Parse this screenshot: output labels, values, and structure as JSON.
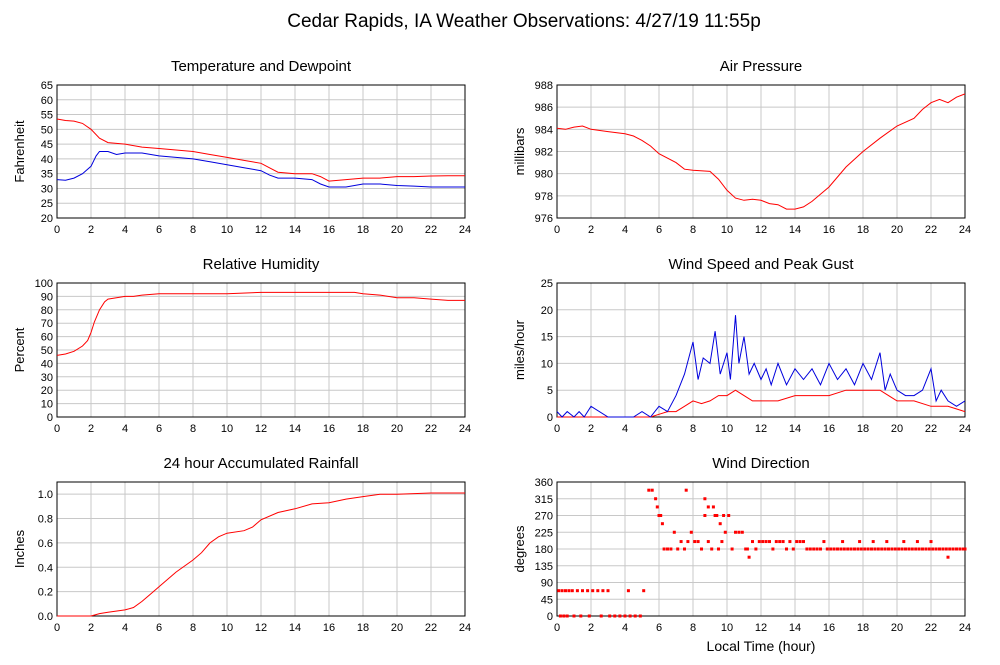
{
  "page": {
    "title": "Cedar Rapids, IA Weather Observations: 4/27/19 11:55p",
    "xlabel": "Local Time (hour)"
  },
  "colors": {
    "red": "#ff0000",
    "blue": "#0000dd"
  },
  "chart_data": [
    {
      "id": "temp",
      "type": "line",
      "title": "Temperature and Dewpoint",
      "ylabel": "Fahrenheit",
      "xlim": [
        0,
        24
      ],
      "xticks": [
        0,
        2,
        4,
        6,
        8,
        10,
        12,
        14,
        16,
        18,
        20,
        22,
        24
      ],
      "ylim": [
        20,
        65
      ],
      "yticks": [
        20,
        25,
        30,
        35,
        40,
        45,
        50,
        55,
        60,
        65
      ],
      "grid": true,
      "series": [
        {
          "color": "red",
          "x": [
            0,
            0.5,
            1,
            1.5,
            2,
            2.5,
            3,
            4,
            5,
            6,
            7,
            8,
            9,
            10,
            11,
            12,
            12.5,
            13,
            14,
            15,
            15.5,
            16,
            17,
            18,
            19,
            20,
            21,
            22,
            23,
            24
          ],
          "y": [
            53.5,
            53,
            52.8,
            52,
            50,
            47,
            45.5,
            45,
            44,
            43.5,
            43,
            42.5,
            41.5,
            40.5,
            39.5,
            38.5,
            37,
            35.5,
            35,
            35,
            34,
            32.5,
            33,
            33.5,
            33.5,
            34,
            34,
            34.2,
            34.3,
            34.3
          ]
        },
        {
          "color": "blue",
          "x": [
            0,
            0.5,
            1,
            1.5,
            2,
            2.3,
            2.5,
            3,
            3.5,
            4,
            5,
            6,
            7,
            8,
            9,
            10,
            11,
            12,
            12.5,
            13,
            14,
            15,
            15.5,
            16,
            17,
            18,
            19,
            20,
            21,
            22,
            23,
            24
          ],
          "y": [
            33,
            32.8,
            33.5,
            35,
            37.5,
            41,
            42.5,
            42.5,
            41.5,
            42,
            42,
            41,
            40.5,
            40,
            39,
            38,
            37,
            36,
            34.5,
            33.5,
            33.5,
            33,
            31.5,
            30.5,
            30.5,
            31.5,
            31.5,
            31,
            30.8,
            30.5,
            30.5,
            30.5
          ]
        }
      ]
    },
    {
      "id": "pressure",
      "type": "line",
      "title": "Air Pressure",
      "ylabel": "millibars",
      "xlim": [
        0,
        24
      ],
      "xticks": [
        0,
        2,
        4,
        6,
        8,
        10,
        12,
        14,
        16,
        18,
        20,
        22,
        24
      ],
      "ylim": [
        976,
        988
      ],
      "yticks": [
        976,
        978,
        980,
        982,
        984,
        986,
        988
      ],
      "grid": true,
      "series": [
        {
          "color": "red",
          "x": [
            0,
            0.5,
            1,
            1.5,
            2,
            3,
            4,
            4.5,
            5,
            5.5,
            6,
            7,
            7.5,
            8,
            9,
            9.5,
            10,
            10.5,
            11,
            11.5,
            12,
            12.5,
            13,
            13.5,
            14,
            14.5,
            15,
            16,
            17,
            18,
            19,
            20,
            21,
            21.5,
            22,
            22.5,
            23,
            23.5,
            24
          ],
          "y": [
            984.1,
            984,
            984.2,
            984.3,
            984,
            983.8,
            983.6,
            983.4,
            983,
            982.5,
            981.8,
            981,
            980.4,
            980.3,
            980.2,
            979.5,
            978.5,
            977.8,
            977.6,
            977.7,
            977.6,
            977.3,
            977.2,
            976.8,
            976.8,
            977,
            977.5,
            978.8,
            980.6,
            982,
            983.2,
            984.3,
            985,
            985.8,
            986.4,
            986.7,
            986.4,
            986.9,
            987.2
          ]
        }
      ]
    },
    {
      "id": "rh",
      "type": "line",
      "title": "Relative Humidity",
      "ylabel": "Percent",
      "xlim": [
        0,
        24
      ],
      "xticks": [
        0,
        2,
        4,
        6,
        8,
        10,
        12,
        14,
        16,
        18,
        20,
        22,
        24
      ],
      "ylim": [
        0,
        100
      ],
      "yticks": [
        0,
        10,
        20,
        30,
        40,
        50,
        60,
        70,
        80,
        90,
        100
      ],
      "grid": true,
      "series": [
        {
          "color": "red",
          "x": [
            0,
            0.5,
            1,
            1.5,
            1.8,
            2,
            2.2,
            2.5,
            2.8,
            3,
            3.5,
            4,
            4.5,
            5,
            6,
            8,
            10,
            12,
            14,
            16,
            17,
            17.5,
            18,
            19,
            20,
            21,
            22,
            23,
            24
          ],
          "y": [
            46,
            47,
            49,
            53,
            57,
            63,
            71,
            80,
            86,
            88,
            89,
            90,
            90,
            91,
            92,
            92,
            92,
            93,
            93,
            93,
            93,
            93,
            92,
            91,
            89,
            89,
            88,
            87,
            87
          ]
        }
      ]
    },
    {
      "id": "wind",
      "type": "line",
      "title": "Wind Speed and Peak Gust",
      "ylabel": "miles/hour",
      "xlim": [
        0,
        24
      ],
      "xticks": [
        0,
        2,
        4,
        6,
        8,
        10,
        12,
        14,
        16,
        18,
        20,
        22,
        24
      ],
      "ylim": [
        0,
        25
      ],
      "yticks": [
        0,
        5,
        10,
        15,
        20,
        25
      ],
      "grid": true,
      "series": [
        {
          "color": "red",
          "x": [
            0,
            5.5,
            6,
            6.5,
            7,
            7.5,
            8,
            8.5,
            9,
            9.5,
            10,
            10.5,
            11,
            11.5,
            12,
            13,
            14,
            15,
            16,
            17,
            18,
            19,
            20,
            21,
            22,
            23,
            24
          ],
          "y": [
            0,
            0,
            0.5,
            1,
            1,
            2,
            3,
            2.5,
            3,
            4,
            4,
            5,
            4,
            3,
            3,
            3,
            4,
            4,
            4,
            5,
            5,
            5,
            3,
            3,
            2,
            2,
            1
          ]
        },
        {
          "color": "blue",
          "x": [
            0,
            0.3,
            0.6,
            1,
            1.3,
            1.6,
            2,
            3,
            4,
            4.5,
            5,
            5.5,
            6,
            6.5,
            7,
            7.5,
            8,
            8.3,
            8.6,
            9,
            9.3,
            9.6,
            10,
            10.2,
            10.5,
            10.7,
            11,
            11.3,
            11.6,
            12,
            12.3,
            12.6,
            13,
            13.5,
            14,
            14.5,
            15,
            15.5,
            16,
            16.5,
            17,
            17.5,
            18,
            18.5,
            19,
            19.3,
            19.6,
            20,
            20.5,
            21,
            21.5,
            22,
            22.3,
            22.6,
            23,
            23.5,
            24
          ],
          "y": [
            1,
            0,
            1,
            0,
            1,
            0,
            2,
            0,
            0,
            0,
            1,
            0,
            2,
            1,
            4,
            8,
            14,
            7,
            11,
            10,
            16,
            8,
            12,
            7,
            19,
            10,
            15,
            8,
            10,
            7,
            9,
            6,
            10,
            6,
            9,
            7,
            9,
            6,
            10,
            7,
            9,
            6,
            10,
            7,
            12,
            5,
            8,
            5,
            4,
            4,
            5,
            9,
            3,
            5,
            3,
            2,
            3
          ]
        }
      ]
    },
    {
      "id": "rain",
      "type": "line",
      "title": "24 hour Accumulated Rainfall",
      "ylabel": "Inches",
      "xlim": [
        0,
        24
      ],
      "xticks": [
        0,
        2,
        4,
        6,
        8,
        10,
        12,
        14,
        16,
        18,
        20,
        22,
        24
      ],
      "ylim": [
        0,
        1.1
      ],
      "yticks": [
        0,
        0.2,
        0.4,
        0.6,
        0.8,
        1.0
      ],
      "yticklabels": [
        "0.0",
        "0.2",
        "0.4",
        "0.6",
        "0.8",
        "1.0"
      ],
      "grid": true,
      "series": [
        {
          "color": "red",
          "x": [
            0,
            2,
            2.5,
            3,
            4,
            4.5,
            5,
            5.5,
            6,
            7,
            8,
            8.5,
            9,
            9.5,
            10,
            11,
            11.5,
            12,
            13,
            14,
            15,
            16,
            17,
            18,
            19,
            20,
            22,
            24
          ],
          "y": [
            0,
            0,
            0.02,
            0.03,
            0.05,
            0.07,
            0.12,
            0.18,
            0.24,
            0.36,
            0.46,
            0.52,
            0.6,
            0.65,
            0.68,
            0.7,
            0.73,
            0.79,
            0.85,
            0.88,
            0.92,
            0.93,
            0.96,
            0.98,
            1.0,
            1.0,
            1.01,
            1.01
          ]
        }
      ]
    },
    {
      "id": "dir",
      "type": "scatter",
      "title": "Wind Direction",
      "ylabel": "degrees",
      "xlim": [
        0,
        24
      ],
      "xticks": [
        0,
        2,
        4,
        6,
        8,
        10,
        12,
        14,
        16,
        18,
        20,
        22,
        24
      ],
      "ylim": [
        0,
        360
      ],
      "yticks": [
        0,
        45,
        90,
        135,
        180,
        225,
        270,
        315,
        360
      ],
      "grid": true,
      "series": [
        {
          "color": "red",
          "x": [
            0.1,
            0.3,
            0.5,
            0.7,
            0.9,
            1.2,
            1.5,
            1.8,
            2.1,
            2.4,
            2.7,
            3.0,
            0.2,
            0.4,
            0.6,
            1.0,
            1.4,
            1.9,
            2.6,
            3.1,
            3.4,
            3.7,
            4.0,
            4.3,
            4.6,
            4.9,
            4.2,
            5.1,
            5.4,
            5.6,
            5.8,
            5.9,
            6.0,
            6.1,
            6.2,
            6.3,
            6.5,
            6.7,
            6.9,
            7.1,
            7.3,
            7.5,
            7.7,
            7.9,
            8.1,
            8.3,
            8.5,
            8.7,
            8.9,
            9.1,
            9.3,
            9.5,
            9.7,
            9.9,
            10.1,
            10.3,
            10.5,
            10.7,
            10.9,
            11.1,
            11.3,
            11.5,
            11.7,
            11.9,
            7.6,
            8.7,
            8.9,
            9.2,
            9.4,
            9.6,
            9.8,
            11.2,
            12.1,
            12.3,
            12.5,
            12.7,
            12.9,
            13.1,
            13.3,
            13.5,
            13.7,
            13.9,
            14.1,
            14.3,
            14.5,
            14.7,
            14.9,
            15.1,
            15.3,
            15.5,
            15.7,
            15.9,
            16.1,
            16.3,
            16.5,
            16.7,
            16.9,
            17.1,
            17.3,
            17.5,
            17.7,
            17.9,
            18.1,
            18.3,
            18.5,
            18.7,
            18.9,
            19.1,
            19.3,
            19.5,
            19.7,
            19.9,
            20.1,
            20.3,
            20.5,
            20.7,
            20.9,
            21.1,
            21.3,
            21.5,
            21.7,
            21.9,
            22.1,
            22.3,
            22.5,
            22.7,
            22.9,
            23.1,
            23.3,
            23.5,
            23.7,
            23.9,
            24.0,
            16.8,
            17.8,
            18.6,
            19.4,
            20.4,
            21.2,
            22.0,
            23.0
          ],
          "y": [
            68,
            68,
            68,
            68,
            68,
            68,
            68,
            68,
            68,
            68,
            68,
            68,
            0,
            0,
            0,
            0,
            0,
            0,
            0,
            0,
            0,
            0,
            0,
            0,
            0,
            0,
            68,
            68,
            338,
            338,
            315,
            293,
            270,
            270,
            248,
            180,
            180,
            180,
            225,
            180,
            200,
            180,
            200,
            225,
            200,
            200,
            180,
            270,
            200,
            180,
            270,
            180,
            200,
            225,
            270,
            180,
            225,
            225,
            225,
            180,
            158,
            200,
            180,
            200,
            338,
            315,
            293,
            293,
            270,
            248,
            270,
            180,
            200,
            200,
            200,
            180,
            200,
            200,
            200,
            180,
            200,
            180,
            200,
            200,
            200,
            180,
            180,
            180,
            180,
            180,
            200,
            180,
            180,
            180,
            180,
            180,
            180,
            180,
            180,
            180,
            180,
            180,
            180,
            180,
            180,
            180,
            180,
            180,
            180,
            180,
            180,
            180,
            180,
            180,
            180,
            180,
            180,
            180,
            180,
            180,
            180,
            180,
            180,
            180,
            180,
            180,
            180,
            180,
            180,
            180,
            180,
            180,
            180,
            200,
            200,
            200,
            200,
            200,
            200,
            200,
            158
          ]
        }
      ]
    }
  ]
}
